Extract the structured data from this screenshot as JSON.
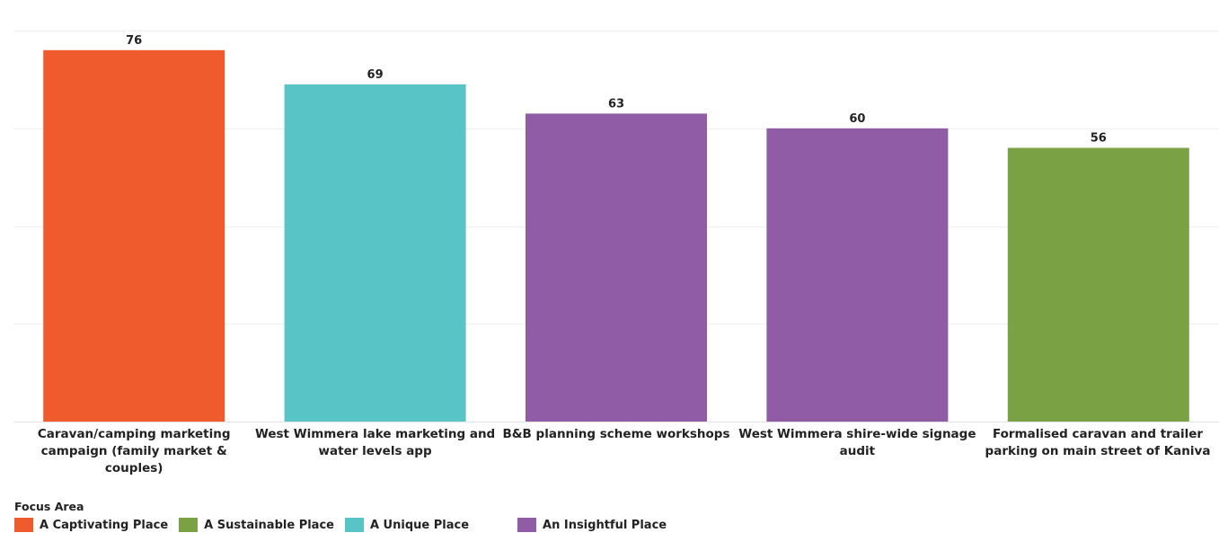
{
  "chart_data": {
    "type": "bar",
    "categories": [
      "Caravan/camping marketing campaign (family market & couples)",
      "West Wimmera lake marketing and water levels app",
      "B&B planning scheme workshops",
      "West Wimmera shire-wide signage audit",
      "Formalised caravan and trailer parking on main street of Kaniva"
    ],
    "values": [
      76,
      69,
      63,
      60,
      56
    ],
    "value_labels": [
      "76",
      "69",
      "63",
      "60",
      "56"
    ],
    "bar_focus_area": [
      "A Captivating Place",
      "A Unique Place",
      "An Insightful Place",
      "An Insightful Place",
      "A Sustainable Place"
    ],
    "ylim": [
      0,
      80
    ],
    "grid": true,
    "legend": {
      "title": "Focus Area",
      "placement": "bottom-left",
      "items": [
        {
          "label": "A Captivating Place",
          "color": "#F05B2E"
        },
        {
          "label": "A Sustainable Place",
          "color": "#7AA143"
        },
        {
          "label": "A Unique Place",
          "color": "#58C4C6"
        },
        {
          "label": "An Insightful Place",
          "color": "#8F5CA5"
        }
      ]
    }
  }
}
